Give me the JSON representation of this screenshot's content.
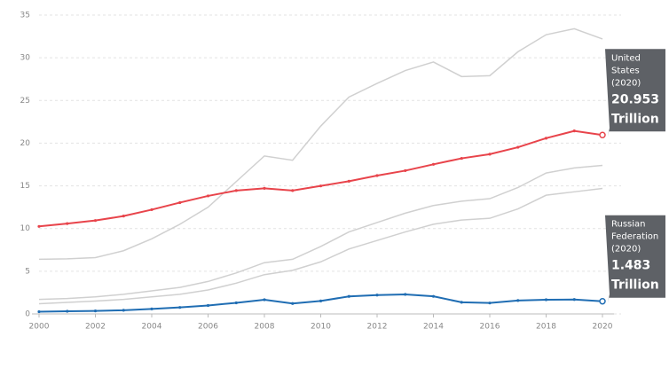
{
  "chart_data": {
    "type": "line",
    "x": [
      2000,
      2001,
      2002,
      2003,
      2004,
      2005,
      2006,
      2007,
      2008,
      2009,
      2010,
      2011,
      2012,
      2013,
      2014,
      2015,
      2016,
      2017,
      2018,
      2019,
      2020
    ],
    "xlim": [
      2000,
      2020
    ],
    "xticks": [
      2000,
      2002,
      2004,
      2006,
      2008,
      2010,
      2012,
      2014,
      2016,
      2018,
      2020
    ],
    "ylim": [
      0,
      35
    ],
    "yticks": [
      0,
      5,
      10,
      15,
      20,
      25,
      30,
      35
    ],
    "grid": true,
    "series": [
      {
        "color": "#d0d0d0",
        "values": [
          6.4,
          6.45,
          6.6,
          7.4,
          8.8,
          10.5,
          12.5,
          15.5,
          18.5,
          18.0,
          22.0,
          25.4,
          27.0,
          28.5,
          29.5,
          27.8,
          27.9,
          30.7,
          32.7,
          33.4,
          32.2
        ]
      },
      {
        "color": "#d0d0d0",
        "values": [
          1.7,
          1.8,
          2.0,
          2.3,
          2.7,
          3.1,
          3.8,
          4.8,
          6.0,
          6.4,
          7.9,
          9.6,
          10.7,
          11.8,
          12.7,
          13.2,
          13.5,
          14.8,
          16.5,
          17.1,
          17.4
        ]
      },
      {
        "color": "#d0d0d0",
        "values": [
          1.2,
          1.35,
          1.5,
          1.7,
          2.0,
          2.3,
          2.8,
          3.6,
          4.6,
          5.1,
          6.1,
          7.6,
          8.6,
          9.6,
          10.5,
          11.0,
          11.2,
          12.3,
          13.9,
          14.3,
          14.7
        ]
      },
      {
        "name": "United States",
        "color": "#e8444b",
        "values": [
          10.25,
          10.58,
          10.94,
          11.46,
          12.21,
          13.04,
          13.82,
          14.45,
          14.71,
          14.45,
          14.99,
          15.54,
          16.2,
          16.78,
          17.52,
          18.22,
          18.71,
          19.52,
          20.58,
          21.43,
          20.953
        ]
      },
      {
        "name": "Russian Federation",
        "color": "#1f6db3",
        "values": [
          0.26,
          0.31,
          0.35,
          0.43,
          0.59,
          0.76,
          0.99,
          1.3,
          1.66,
          1.22,
          1.52,
          2.05,
          2.21,
          2.29,
          2.06,
          1.36,
          1.28,
          1.57,
          1.66,
          1.69,
          1.483
        ]
      }
    ],
    "tooltips": [
      {
        "series": 3,
        "year": "(2020)",
        "value": "20.953",
        "unit": "Trillion"
      },
      {
        "series": 4,
        "year": "(2020)",
        "value": "1.483",
        "unit": "Trillion"
      }
    ]
  }
}
